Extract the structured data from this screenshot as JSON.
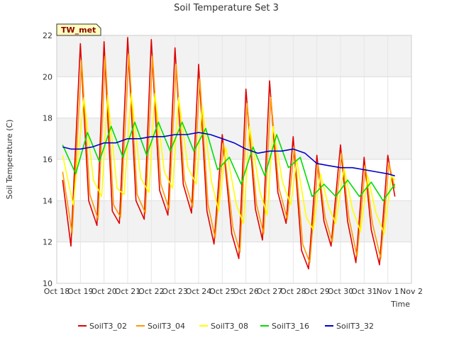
{
  "chart_data": {
    "type": "line",
    "title": "Soil Temperature Set 3",
    "xlabel": "Time",
    "ylabel": "Soil Temperature (C)",
    "badge": "TW_met",
    "ylim": [
      10,
      22
    ],
    "yticks": [
      10,
      12,
      14,
      16,
      18,
      20,
      22
    ],
    "xlim": [
      0,
      15
    ],
    "xticks": [
      {
        "x": 0,
        "label": "Oct 18"
      },
      {
        "x": 1,
        "label": "Oct 19"
      },
      {
        "x": 2,
        "label": "Oct 20"
      },
      {
        "x": 3,
        "label": "Oct 21"
      },
      {
        "x": 4,
        "label": "Oct 22"
      },
      {
        "x": 5,
        "label": "Oct 23"
      },
      {
        "x": 6,
        "label": "Oct 24"
      },
      {
        "x": 7,
        "label": "Oct 25"
      },
      {
        "x": 8,
        "label": "Oct 26"
      },
      {
        "x": 9,
        "label": "Oct 27"
      },
      {
        "x": 10,
        "label": "Oct 28"
      },
      {
        "x": 11,
        "label": "Oct 29"
      },
      {
        "x": 12,
        "label": "Oct 30"
      },
      {
        "x": 13,
        "label": "Oct 31"
      },
      {
        "x": 14,
        "label": "Nov 1"
      },
      {
        "x": 15,
        "label": "Nov 2"
      }
    ],
    "grid": true,
    "legend_position": "bottom",
    "series": [
      {
        "name": "SoilT3_02",
        "color": "#e00000",
        "x": [
          0.25,
          0.6,
          1.0,
          1.35,
          1.7,
          2.0,
          2.35,
          2.65,
          3.0,
          3.35,
          3.7,
          4.0,
          4.35,
          4.7,
          5.0,
          5.35,
          5.7,
          6.0,
          6.35,
          6.65,
          7.0,
          7.4,
          7.7,
          8.0,
          8.4,
          8.7,
          9.0,
          9.35,
          9.7,
          10.0,
          10.35,
          10.65,
          11.0,
          11.3,
          11.6,
          12.0,
          12.3,
          12.65,
          13.0,
          13.3,
          13.65,
          14.0,
          14.3
        ],
        "y": [
          15.0,
          11.8,
          21.6,
          14.0,
          12.8,
          21.7,
          13.5,
          12.9,
          21.9,
          14.0,
          13.1,
          21.8,
          14.5,
          13.3,
          21.4,
          14.8,
          13.4,
          20.6,
          13.5,
          11.9,
          17.2,
          12.4,
          11.2,
          19.4,
          13.6,
          12.1,
          19.8,
          14.4,
          12.9,
          17.1,
          11.6,
          10.7,
          16.2,
          13.0,
          11.8,
          16.7,
          13.0,
          11.0,
          16.1,
          12.6,
          10.9,
          16.2,
          14.2
        ]
      },
      {
        "name": "SoilT3_04",
        "color": "#ff9900",
        "x": [
          0.25,
          0.65,
          1.05,
          1.4,
          1.75,
          2.05,
          2.4,
          2.7,
          3.05,
          3.4,
          3.75,
          4.05,
          4.4,
          4.75,
          5.05,
          5.4,
          5.75,
          6.05,
          6.4,
          6.7,
          7.05,
          7.45,
          7.75,
          8.05,
          8.45,
          8.75,
          9.05,
          9.4,
          9.75,
          10.05,
          10.4,
          10.7,
          11.05,
          11.35,
          11.65,
          12.05,
          12.35,
          12.7,
          13.05,
          13.35,
          13.7,
          14.05,
          14.3
        ],
        "y": [
          15.4,
          12.4,
          20.8,
          14.3,
          13.1,
          21.0,
          13.8,
          13.2,
          21.1,
          14.3,
          13.4,
          21.0,
          14.8,
          13.6,
          20.6,
          15.0,
          13.7,
          19.9,
          13.8,
          12.2,
          16.8,
          12.7,
          11.5,
          18.7,
          13.8,
          12.4,
          19.0,
          14.6,
          13.1,
          16.6,
          11.9,
          11.0,
          15.8,
          13.2,
          12.0,
          16.3,
          13.2,
          11.3,
          15.7,
          12.9,
          11.2,
          15.8,
          14.6
        ]
      },
      {
        "name": "SoilT3_08",
        "color": "#ffff00",
        "x": [
          0.25,
          0.7,
          1.15,
          1.55,
          1.9,
          2.15,
          2.55,
          2.85,
          3.15,
          3.55,
          3.9,
          4.15,
          4.55,
          4.9,
          5.15,
          5.55,
          5.9,
          6.15,
          6.55,
          6.85,
          7.15,
          7.6,
          7.9,
          8.15,
          8.6,
          8.9,
          9.15,
          9.55,
          9.9,
          10.15,
          10.55,
          10.85,
          11.15,
          11.5,
          11.8,
          12.15,
          12.5,
          12.85,
          13.15,
          13.5,
          13.85,
          14.15,
          14.3
        ],
        "y": [
          16.2,
          13.8,
          19.0,
          15.0,
          14.2,
          19.1,
          14.6,
          14.3,
          19.2,
          15.1,
          14.4,
          19.2,
          15.4,
          14.6,
          19.0,
          15.6,
          14.8,
          18.6,
          14.9,
          13.5,
          16.6,
          13.8,
          12.9,
          17.6,
          14.4,
          13.3,
          17.6,
          14.9,
          13.8,
          16.0,
          13.2,
          12.6,
          15.3,
          13.7,
          12.9,
          15.6,
          13.6,
          12.5,
          15.2,
          13.4,
          12.4,
          15.2,
          15.0
        ]
      },
      {
        "name": "SoilT3_16",
        "color": "#00dd00",
        "x": [
          0.25,
          0.8,
          1.3,
          1.8,
          2.3,
          2.8,
          3.3,
          3.8,
          4.3,
          4.8,
          5.3,
          5.8,
          6.3,
          6.8,
          7.3,
          7.8,
          8.3,
          8.8,
          9.3,
          9.8,
          10.3,
          10.8,
          11.3,
          11.8,
          12.3,
          12.8,
          13.3,
          13.8,
          14.3
        ],
        "y": [
          16.7,
          15.3,
          17.3,
          15.9,
          17.6,
          16.1,
          17.8,
          16.2,
          17.8,
          16.4,
          17.8,
          16.4,
          17.5,
          15.5,
          16.1,
          14.8,
          16.6,
          15.2,
          17.2,
          15.6,
          16.1,
          14.2,
          14.8,
          14.2,
          15.0,
          14.2,
          14.9,
          14.0,
          14.8
        ]
      },
      {
        "name": "SoilT3_32",
        "color": "#0000cc",
        "x": [
          0.25,
          0.6,
          1.0,
          1.5,
          2.0,
          2.5,
          3.0,
          3.5,
          4.0,
          4.5,
          5.0,
          5.5,
          6.0,
          6.5,
          7.0,
          7.5,
          8.0,
          8.5,
          9.0,
          9.5,
          10.0,
          10.5,
          11.0,
          11.5,
          12.0,
          12.5,
          13.0,
          13.5,
          14.0,
          14.3
        ],
        "y": [
          16.6,
          16.5,
          16.5,
          16.6,
          16.8,
          16.8,
          17.0,
          17.0,
          17.1,
          17.1,
          17.2,
          17.2,
          17.3,
          17.2,
          17.0,
          16.8,
          16.5,
          16.3,
          16.4,
          16.4,
          16.5,
          16.3,
          15.8,
          15.7,
          15.6,
          15.6,
          15.5,
          15.4,
          15.3,
          15.2
        ]
      }
    ]
  }
}
